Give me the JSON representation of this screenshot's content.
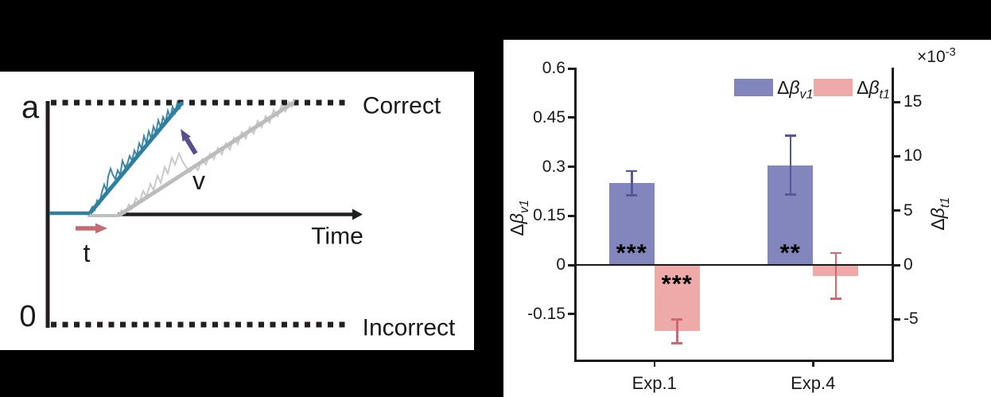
{
  "figure": {
    "background_color": "#000000",
    "panel_color": "#ffffff"
  },
  "ddm": {
    "threshold_label": "a",
    "origin_label": "0",
    "upper_bound_label": "Correct",
    "lower_bound_label": "Incorrect",
    "time_axis_label": "Time",
    "nondecision_time_label": "t",
    "drift_rate_label": "v",
    "colors": {
      "fast_drift_line": "#2f7f9e",
      "fast_noise_trace": "#3f89a6",
      "slow_drift_line": "#bcbcbc",
      "slow_noise_trace": "#c9c9c9",
      "drift_arrow": "#57508e",
      "ndt_arrow": "#c26b70",
      "axis": "#231f20"
    }
  },
  "chart_data": {
    "type": "bar",
    "categories": [
      "Exp.1",
      "Exp.4"
    ],
    "series": [
      {
        "name": "Δβ_v1",
        "axis": "left",
        "color": "#8286bd",
        "error_color": "#545898",
        "values": [
          0.25,
          0.305
        ],
        "errors": [
          0.037,
          0.09
        ],
        "significance": [
          "***",
          "**"
        ]
      },
      {
        "name": "Δβ_t1",
        "axis": "right",
        "color": "#eeaaa8",
        "error_color": "#cf6770",
        "values": [
          -0.0061,
          -0.001
        ],
        "errors": [
          0.0011,
          0.0021
        ],
        "significance": [
          "***",
          ""
        ]
      }
    ],
    "left_axis": {
      "label_delta": "Δ",
      "label_beta": "β",
      "label_sub": "v1",
      "ticks": [
        "0.6",
        "0.45",
        "0.3",
        "0.15",
        "0",
        "-0.15"
      ]
    },
    "right_axis": {
      "label_delta": "Δ",
      "label_beta": "β",
      "label_sub": "t1",
      "multiplier_base": "×10",
      "multiplier_exp": "-3",
      "ticks": [
        "15",
        "10",
        "5",
        "0",
        "-5"
      ],
      "tick_scale": 0.001
    },
    "legend": {
      "position": "top-right",
      "items": [
        {
          "delta": "Δ",
          "beta": "β",
          "sub": "v1",
          "color": "#8286bd"
        },
        {
          "delta": "Δ",
          "beta": "β",
          "sub": "t1",
          "color": "#eeaaa8"
        }
      ]
    },
    "grid": false
  }
}
